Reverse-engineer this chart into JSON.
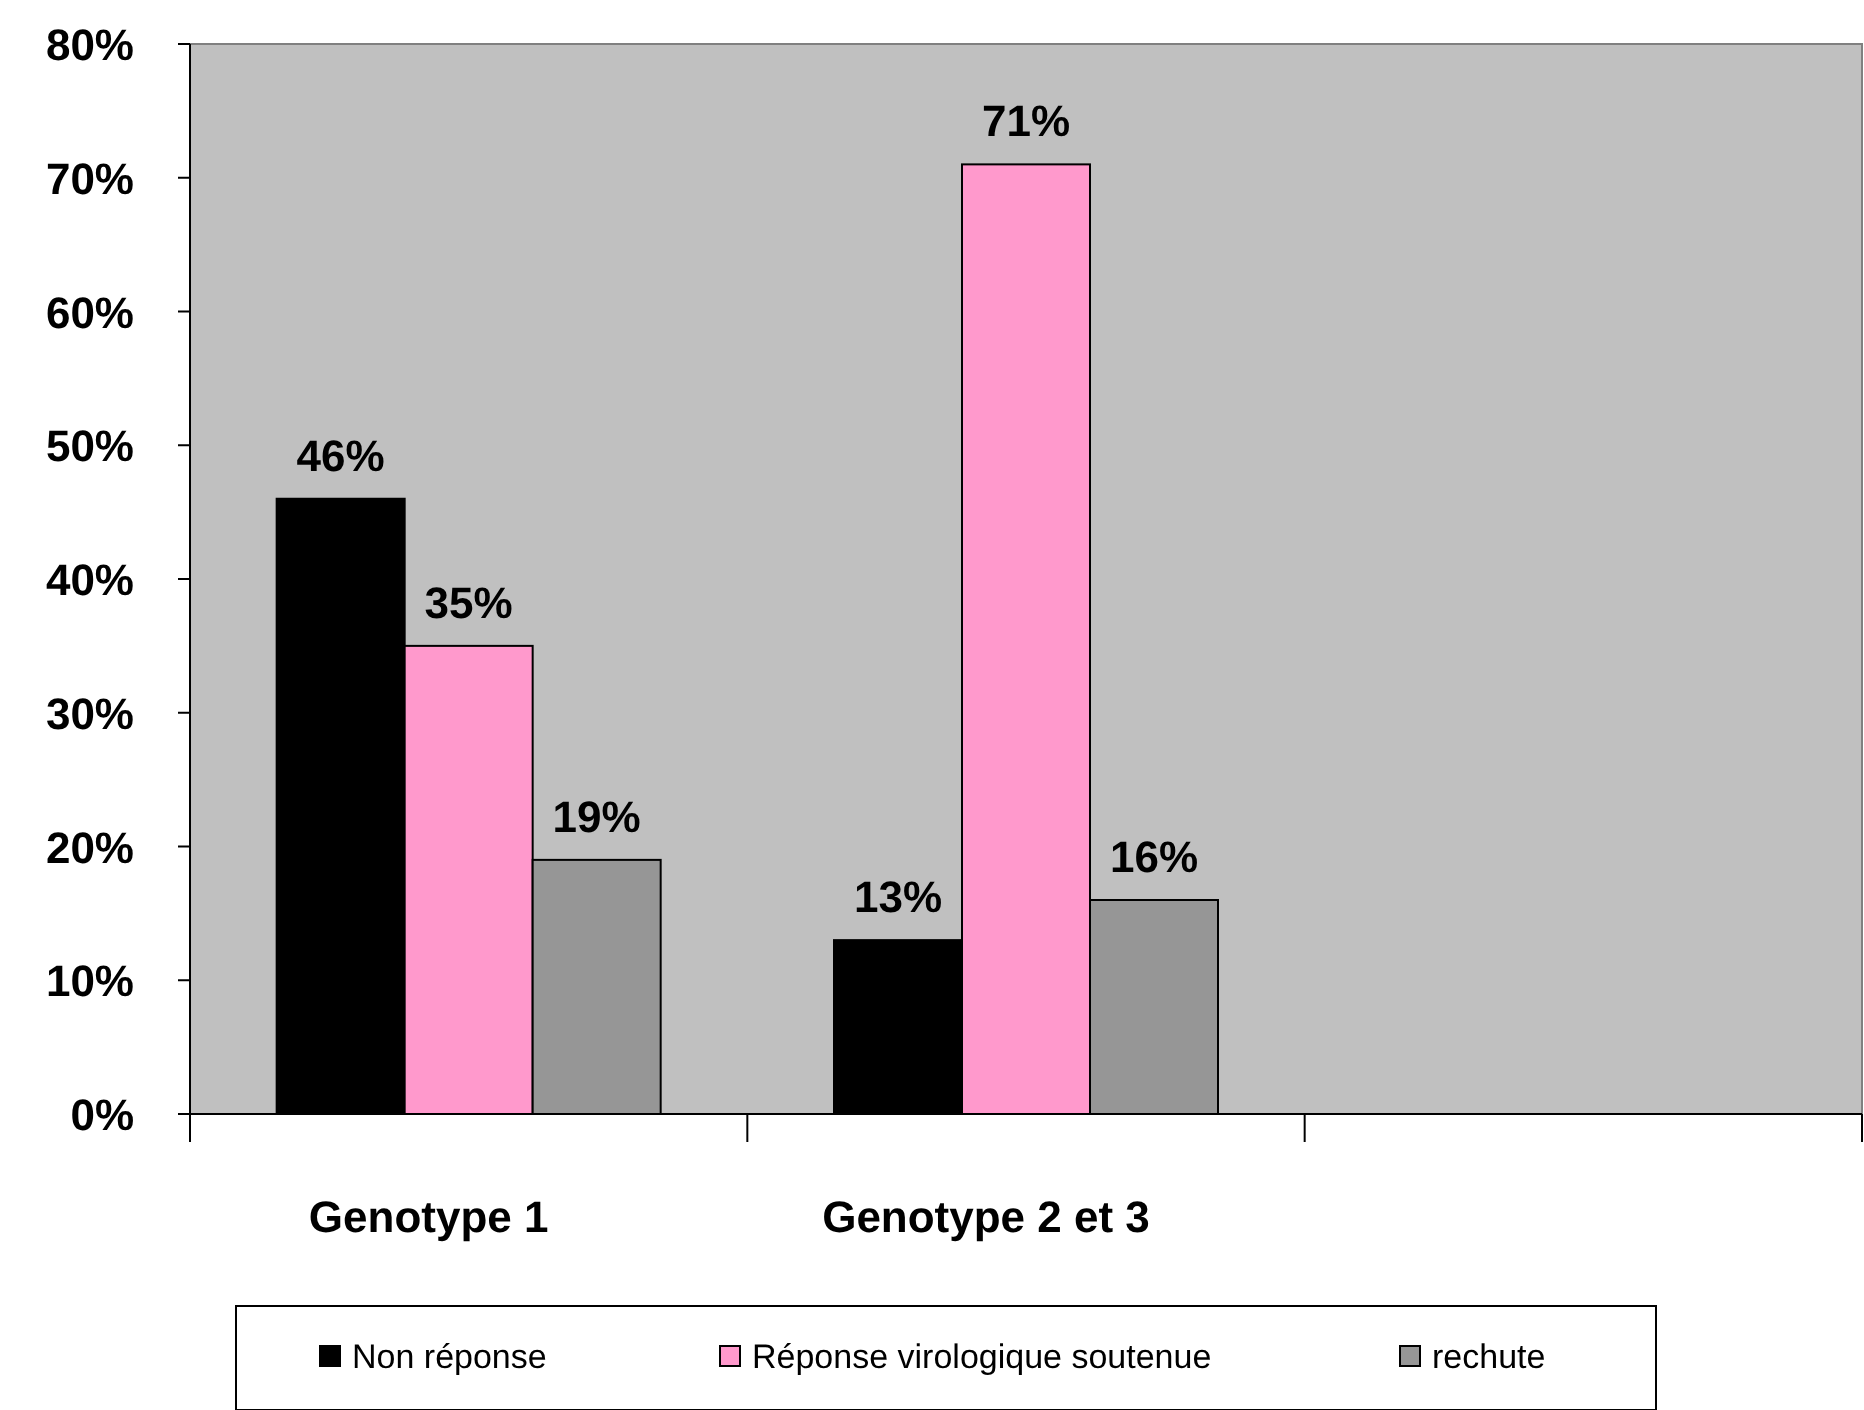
{
  "chart_data": {
    "type": "bar",
    "categories": [
      "Genotype 1",
      "Genotype 2 et 3",
      null
    ],
    "series": [
      {
        "name": "Non réponse",
        "color": "#000000",
        "values": [
          46,
          13,
          null
        ],
        "value_labels": [
          "46%",
          "13%",
          null
        ]
      },
      {
        "name": "Réponse virologique soutenue",
        "color": "#ff99cc",
        "values": [
          35,
          71,
          null
        ],
        "value_labels": [
          "35%",
          "71%",
          null
        ]
      },
      {
        "name": "rechute",
        "color": "#969696",
        "values": [
          19,
          16,
          null
        ],
        "value_labels": [
          "19%",
          "16%",
          null
        ]
      }
    ],
    "ylim": [
      0,
      80
    ],
    "yticks": [
      {
        "value": 0,
        "label": "0%"
      },
      {
        "value": 10,
        "label": "10%"
      },
      {
        "value": 20,
        "label": "20%"
      },
      {
        "value": 30,
        "label": "30%"
      },
      {
        "value": 40,
        "label": "40%"
      },
      {
        "value": 50,
        "label": "50%"
      },
      {
        "value": 60,
        "label": "60%"
      },
      {
        "value": 70,
        "label": "70%"
      },
      {
        "value": 80,
        "label": "80%"
      }
    ],
    "grid": false,
    "legend": "bottom"
  }
}
